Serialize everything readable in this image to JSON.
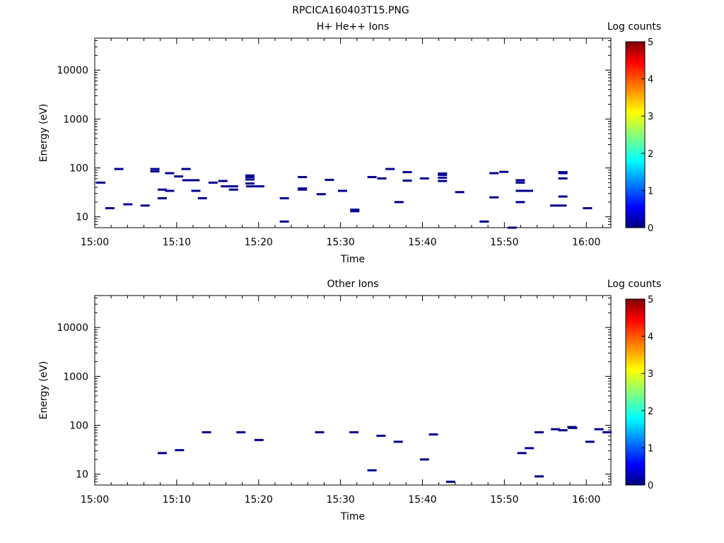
{
  "figure_title": "RPCICA160403T15.PNG",
  "chart_data": [
    {
      "type": "heatmap",
      "title": "H+ He++ Ions",
      "xlabel": "Time",
      "ylabel": "Energy (eV)",
      "x_ticks": [
        "15:00",
        "15:10",
        "15:20",
        "15:30",
        "15:40",
        "15:50",
        "16:00"
      ],
      "y_ticks": [
        "10",
        "100",
        "1000",
        "10000"
      ],
      "ylog": true,
      "xlim_minutes": [
        0,
        63
      ],
      "ylim": [
        6,
        45000
      ],
      "colorbar": {
        "label": "Log counts",
        "ticks": [
          "0",
          "1",
          "2",
          "3",
          "4",
          "5"
        ],
        "range": [
          0,
          5
        ]
      },
      "points": [
        [
          0.7,
          50
        ],
        [
          1.8,
          15
        ],
        [
          2.9,
          95
        ],
        [
          4.0,
          18
        ],
        [
          6.1,
          17
        ],
        [
          7.3,
          95
        ],
        [
          7.3,
          85
        ],
        [
          8.2,
          36
        ],
        [
          8.2,
          24
        ],
        [
          9.1,
          78
        ],
        [
          9.1,
          34
        ],
        [
          10.2,
          67
        ],
        [
          11.1,
          95
        ],
        [
          11.2,
          56
        ],
        [
          12.2,
          56
        ],
        [
          12.3,
          34
        ],
        [
          13.1,
          24
        ],
        [
          14.4,
          50
        ],
        [
          15.6,
          54
        ],
        [
          15.9,
          42
        ],
        [
          16.9,
          42
        ],
        [
          16.9,
          36
        ],
        [
          18.9,
          70
        ],
        [
          18.9,
          65
        ],
        [
          18.9,
          58
        ],
        [
          18.9,
          48
        ],
        [
          19.0,
          42
        ],
        [
          20.1,
          42
        ],
        [
          23.1,
          24
        ],
        [
          23.1,
          8
        ],
        [
          25.3,
          65
        ],
        [
          25.3,
          38
        ],
        [
          25.3,
          36
        ],
        [
          27.6,
          29
        ],
        [
          28.6,
          57
        ],
        [
          30.2,
          34
        ],
        [
          31.7,
          14
        ],
        [
          31.7,
          13
        ],
        [
          33.8,
          65
        ],
        [
          35.0,
          61
        ],
        [
          36.0,
          95
        ],
        [
          37.1,
          20
        ],
        [
          38.1,
          82
        ],
        [
          38.1,
          55
        ],
        [
          40.2,
          61
        ],
        [
          42.4,
          77
        ],
        [
          42.4,
          72
        ],
        [
          42.4,
          63
        ],
        [
          42.4,
          54
        ],
        [
          44.5,
          32
        ],
        [
          47.5,
          8
        ],
        [
          47.5,
          8
        ],
        [
          48.7,
          78
        ],
        [
          48.7,
          25
        ],
        [
          49.9,
          83
        ],
        [
          50.9,
          6
        ],
        [
          51.9,
          56
        ],
        [
          51.9,
          50
        ],
        [
          51.9,
          34
        ],
        [
          52.9,
          34
        ],
        [
          51.9,
          20
        ],
        [
          56.1,
          17
        ],
        [
          57.0,
          17
        ],
        [
          57.1,
          82
        ],
        [
          57.1,
          78
        ],
        [
          57.1,
          61
        ],
        [
          57.1,
          26
        ],
        [
          60.1,
          15
        ]
      ]
    },
    {
      "type": "heatmap",
      "title": "Other Ions",
      "xlabel": "Time",
      "ylabel": "Energy (eV)",
      "x_ticks": [
        "15:00",
        "15:10",
        "15:20",
        "15:30",
        "15:40",
        "15:50",
        "16:00"
      ],
      "y_ticks": [
        "10",
        "100",
        "1000",
        "10000"
      ],
      "ylog": true,
      "xlim_minutes": [
        0,
        63
      ],
      "ylim": [
        6,
        45000
      ],
      "colorbar": {
        "label": "Log counts",
        "ticks": [
          "0",
          "1",
          "2",
          "3",
          "4",
          "5"
        ],
        "range": [
          0,
          5
        ]
      },
      "points": [
        [
          8.2,
          27
        ],
        [
          10.3,
          31
        ],
        [
          13.6,
          72
        ],
        [
          17.8,
          72
        ],
        [
          20.0,
          50
        ],
        [
          27.4,
          72
        ],
        [
          31.6,
          72
        ],
        [
          33.8,
          12
        ],
        [
          34.9,
          61
        ],
        [
          37.0,
          46
        ],
        [
          40.2,
          20
        ],
        [
          41.3,
          65
        ],
        [
          43.4,
          7
        ],
        [
          52.1,
          27
        ],
        [
          53.0,
          34
        ],
        [
          54.2,
          72
        ],
        [
          54.2,
          9
        ],
        [
          56.2,
          83
        ],
        [
          57.1,
          79
        ],
        [
          58.2,
          92
        ],
        [
          58.3,
          88
        ],
        [
          60.4,
          46
        ],
        [
          61.5,
          83
        ],
        [
          62.5,
          72
        ]
      ]
    }
  ]
}
